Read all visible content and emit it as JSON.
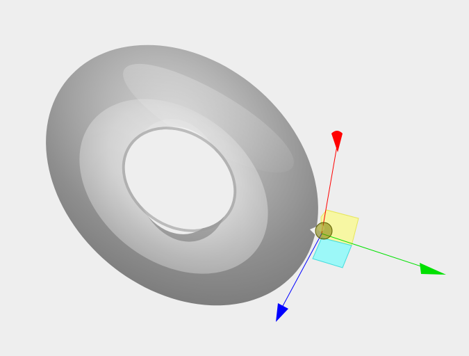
{
  "viewport": {
    "background": "#eeeeee"
  },
  "scene": {
    "object": {
      "shape": "torus",
      "color": "#9a9a9a"
    },
    "gizmo": {
      "type": "translate",
      "axes": [
        {
          "axis": "x",
          "color": "#00e000",
          "icon": "arrow-head-icon"
        },
        {
          "axis": "y",
          "color": "#ff0000",
          "icon": "arrow-head-icon"
        },
        {
          "axis": "z",
          "color": "#0000ff",
          "icon": "arrow-head-icon"
        }
      ],
      "planes": [
        {
          "plane": "xy",
          "color": "#ffff66"
        },
        {
          "plane": "xz",
          "color": "#66ffff"
        }
      ],
      "center_handle_color": "#7a7a00"
    }
  }
}
